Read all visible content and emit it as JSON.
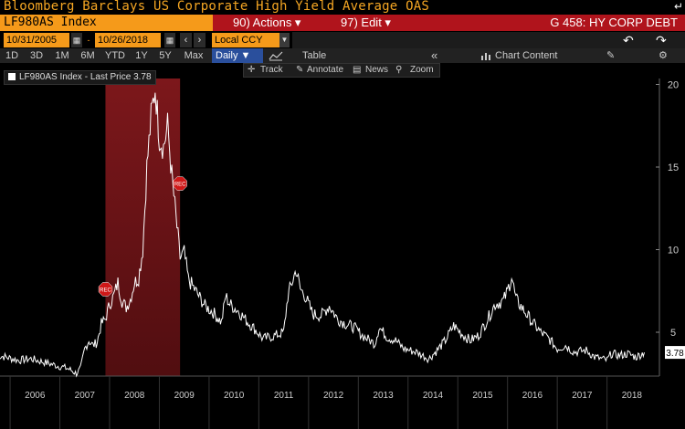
{
  "header": {
    "title": "Bloomberg Barclays US Corporate High Yield Average OAS",
    "corner_icon": "exit-arrow-icon"
  },
  "menu": {
    "ticker": "LF980AS Index",
    "actions": "90) Actions ▾",
    "edit": "97) Edit ▾",
    "page": "G 458: HY CORP DEBT"
  },
  "dates": {
    "start": "10/31/2005",
    "end": "10/26/2018",
    "currency": "Local CCY"
  },
  "ranges": [
    "1D",
    "3D",
    "1M",
    "6M",
    "YTD",
    "1Y",
    "5Y",
    "Max"
  ],
  "period": "Daily ▼",
  "toolbar": {
    "table": "Table",
    "collapse": "«",
    "chart_content": "Chart Content"
  },
  "tools": {
    "track": "Track",
    "annotate": "Annotate",
    "news": "News",
    "zoom": "Zoom"
  },
  "legend": {
    "label": "LF980AS Index - Last Price 3.78"
  },
  "colors": {
    "accent": "#f59a1a",
    "menu_red": "#b0141c",
    "recession_shade": "#6e1418",
    "line": "#ffffff",
    "daily_blue": "#2a4f9c"
  },
  "chart_data": {
    "type": "line",
    "x_tick_labels": [
      "2006",
      "2007",
      "2008",
      "2009",
      "2010",
      "2011",
      "2012",
      "2013",
      "2014",
      "2015",
      "2016",
      "2017",
      "2018"
    ],
    "y_ticks": [
      5,
      10,
      15,
      20
    ],
    "ylim": [
      0,
      21
    ],
    "last_value_label": "3.78",
    "recession": {
      "start": "2007-12",
      "end": "2009-06",
      "label": "REC"
    },
    "grid": false,
    "series": [
      {
        "values": [
          [
            "2005-10",
            3.6
          ],
          [
            "2005-12",
            3.5
          ],
          [
            "2006-03",
            3.3
          ],
          [
            "2006-06",
            3.4
          ],
          [
            "2006-09",
            3.2
          ],
          [
            "2006-12",
            3.0
          ],
          [
            "2007-03",
            2.8
          ],
          [
            "2007-05",
            2.5
          ],
          [
            "2007-06",
            2.8
          ],
          [
            "2007-07",
            4.0
          ],
          [
            "2007-08",
            4.5
          ],
          [
            "2007-09",
            4.2
          ],
          [
            "2007-10",
            4.4
          ],
          [
            "2007-11",
            5.5
          ],
          [
            "2007-12",
            5.8
          ],
          [
            "2008-01",
            6.7
          ],
          [
            "2008-02",
            7.2
          ],
          [
            "2008-03",
            8.0
          ],
          [
            "2008-04",
            6.9
          ],
          [
            "2008-05",
            6.5
          ],
          [
            "2008-06",
            7.0
          ],
          [
            "2008-07",
            8.0
          ],
          [
            "2008-08",
            8.3
          ],
          [
            "2008-09",
            10.0
          ],
          [
            "2008-10",
            15.0
          ],
          [
            "2008-11",
            18.0
          ],
          [
            "2008-12",
            19.8
          ],
          [
            "2009-01",
            16.8
          ],
          [
            "2009-02",
            16.2
          ],
          [
            "2009-03",
            17.5
          ],
          [
            "2009-04",
            14.5
          ],
          [
            "2009-05",
            12.0
          ],
          [
            "2009-06",
            9.5
          ],
          [
            "2009-07",
            9.8
          ],
          [
            "2009-08",
            8.2
          ],
          [
            "2009-10",
            7.4
          ],
          [
            "2009-12",
            6.6
          ],
          [
            "2010-02",
            6.2
          ],
          [
            "2010-04",
            5.6
          ],
          [
            "2010-05",
            7.2
          ],
          [
            "2010-06",
            6.7
          ],
          [
            "2010-08",
            6.3
          ],
          [
            "2010-10",
            5.7
          ],
          [
            "2010-12",
            5.2
          ],
          [
            "2011-02",
            4.6
          ],
          [
            "2011-05",
            4.8
          ],
          [
            "2011-07",
            5.0
          ],
          [
            "2011-08",
            7.2
          ],
          [
            "2011-10",
            8.8
          ],
          [
            "2011-11",
            7.6
          ],
          [
            "2011-12",
            7.3
          ],
          [
            "2012-02",
            6.1
          ],
          [
            "2012-04",
            6.0
          ],
          [
            "2012-06",
            6.6
          ],
          [
            "2012-08",
            5.8
          ],
          [
            "2012-10",
            5.5
          ],
          [
            "2012-12",
            5.3
          ],
          [
            "2013-02",
            4.8
          ],
          [
            "2013-05",
            4.3
          ],
          [
            "2013-06",
            5.3
          ],
          [
            "2013-08",
            4.7
          ],
          [
            "2013-10",
            4.5
          ],
          [
            "2013-12",
            4.0
          ],
          [
            "2014-03",
            3.8
          ],
          [
            "2014-06",
            3.4
          ],
          [
            "2014-08",
            3.9
          ],
          [
            "2014-10",
            4.5
          ],
          [
            "2014-12",
            5.4
          ],
          [
            "2015-02",
            4.9
          ],
          [
            "2015-04",
            4.5
          ],
          [
            "2015-06",
            4.8
          ],
          [
            "2015-08",
            5.7
          ],
          [
            "2015-10",
            6.7
          ],
          [
            "2015-12",
            6.9
          ],
          [
            "2016-01",
            7.5
          ],
          [
            "2016-02",
            8.4
          ],
          [
            "2016-03",
            7.0
          ],
          [
            "2016-05",
            6.3
          ],
          [
            "2016-07",
            5.6
          ],
          [
            "2016-09",
            5.0
          ],
          [
            "2016-11",
            4.6
          ],
          [
            "2017-01",
            4.0
          ],
          [
            "2017-03",
            4.2
          ],
          [
            "2017-05",
            3.8
          ],
          [
            "2017-08",
            3.9
          ],
          [
            "2017-10",
            3.5
          ],
          [
            "2018-01",
            3.3
          ],
          [
            "2018-02",
            3.7
          ],
          [
            "2018-04",
            3.6
          ],
          [
            "2018-06",
            3.7
          ],
          [
            "2018-08",
            3.5
          ],
          [
            "2018-10",
            3.78
          ]
        ]
      }
    ]
  }
}
